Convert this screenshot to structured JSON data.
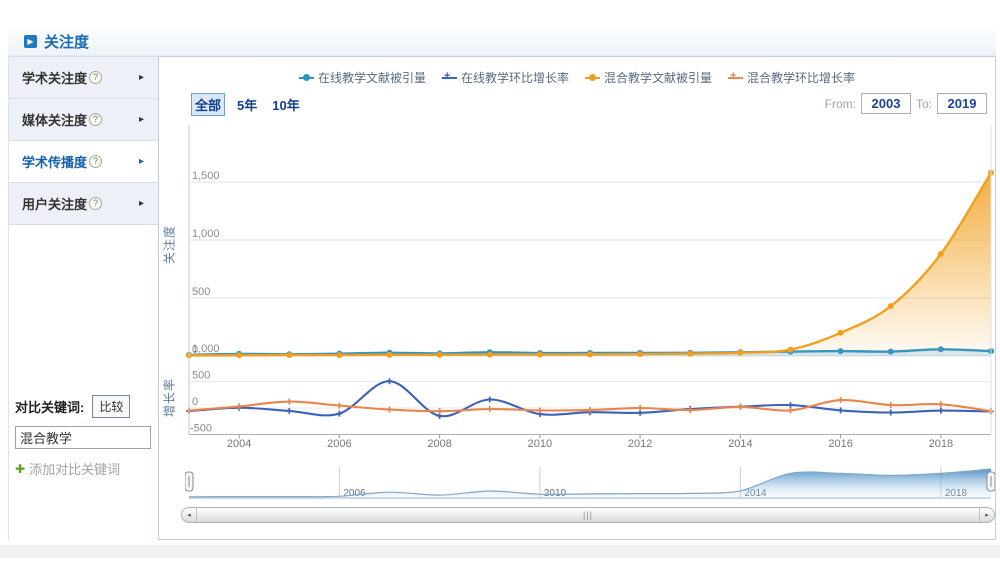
{
  "header": {
    "title": "关注度"
  },
  "icons": {
    "section_arrow": "▶",
    "help": "?",
    "menu_arrow": "▸",
    "plus": "✚",
    "scroll_left": "◂",
    "scroll_right": "▸",
    "grip": "|||"
  },
  "sidebar": {
    "items": [
      {
        "label": "学术关注度",
        "active": false
      },
      {
        "label": "媒体关注度",
        "active": false
      },
      {
        "label": "学术传播度",
        "active": true
      },
      {
        "label": "用户关注度",
        "active": false
      }
    ]
  },
  "compare": {
    "label": "对比关键词:",
    "button": "比较",
    "keyword": "混合教学",
    "add_label": "添加对比关键词"
  },
  "legend": {
    "items": [
      {
        "label": "在线教学文献被引量",
        "color": "#2e94c8",
        "marker": "circle"
      },
      {
        "label": "在线教学环比增长率",
        "color": "#3a62b8",
        "marker": "plus"
      },
      {
        "label": "混合教学文献被引量",
        "color": "#f0a01e",
        "marker": "circle"
      },
      {
        "label": "混合教学环比增长率",
        "color": "#e8854a",
        "marker": "plus"
      }
    ]
  },
  "range": {
    "tabs": [
      {
        "label": "全部",
        "active": true
      },
      {
        "label": "5年",
        "active": false
      },
      {
        "label": "10年",
        "active": false
      }
    ],
    "from_label": "From:",
    "from_value": "2003",
    "to_label": "To:",
    "to_value": "2019"
  },
  "chart_data": [
    {
      "type": "line",
      "name": "attention-index",
      "ylabel": "关注度",
      "x": [
        2003,
        2004,
        2005,
        2006,
        2007,
        2008,
        2009,
        2010,
        2011,
        2012,
        2013,
        2014,
        2015,
        2016,
        2017,
        2018,
        2019
      ],
      "ylim": [
        0,
        1750
      ],
      "yticks": [
        {
          "v": 0,
          "label": "0"
        },
        {
          "v": 500,
          "label": "500"
        },
        {
          "v": 1000,
          "label": "1,000"
        },
        {
          "v": 1500,
          "label": "1,500"
        }
      ],
      "series": [
        {
          "name": "在线教学文献被引量",
          "color": "#2e94c8",
          "marker": "circle",
          "area": true,
          "values": [
            10,
            18,
            15,
            20,
            28,
            22,
            32,
            25,
            26,
            27,
            28,
            32,
            38,
            42,
            38,
            58,
            42
          ]
        },
        {
          "name": "混合教学文献被引量",
          "color": "#f0a01e",
          "marker": "circle",
          "area": true,
          "values": [
            5,
            6,
            8,
            8,
            10,
            10,
            12,
            12,
            14,
            16,
            20,
            28,
            55,
            200,
            430,
            880,
            1580
          ]
        }
      ]
    },
    {
      "type": "line",
      "name": "growth-rate",
      "ylabel": "增长率",
      "x": [
        2003,
        2004,
        2005,
        2006,
        2007,
        2008,
        2009,
        2010,
        2011,
        2012,
        2013,
        2014,
        2015,
        2016,
        2017,
        2018,
        2019
      ],
      "ylim": [
        -500,
        1000
      ],
      "yticks": [
        {
          "v": 1000,
          "label": "1,000"
        },
        {
          "v": 500,
          "label": "500"
        },
        {
          "v": 0,
          "label": "0"
        },
        {
          "v": -500,
          "label": "-500"
        }
      ],
      "xticks": [
        2004,
        2006,
        2008,
        2010,
        2012,
        2014,
        2016,
        2018
      ],
      "series": [
        {
          "name": "在线教学环比增长率",
          "color": "#3a62b8",
          "marker": "plus",
          "values": [
            -60,
            5,
            -55,
            -105,
            505,
            -150,
            160,
            -115,
            -80,
            -90,
            -20,
            25,
            55,
            -45,
            -85,
            -50,
            -65
          ]
        },
        {
          "name": "混合教学环比增长率",
          "color": "#e8854a",
          "marker": "plus",
          "values": [
            -50,
            30,
            120,
            45,
            -30,
            -60,
            -20,
            -45,
            -40,
            0,
            -40,
            20,
            -45,
            150,
            55,
            70,
            -60
          ]
        }
      ]
    },
    {
      "type": "area",
      "name": "navigator",
      "color": "#4a8fc4",
      "x": [
        2003,
        2004,
        2005,
        2006,
        2007,
        2008,
        2009,
        2010,
        2011,
        2012,
        2013,
        2014,
        2015,
        2016,
        2017,
        2018,
        2019
      ],
      "values": [
        0.04,
        0.05,
        0.05,
        0.06,
        0.2,
        0.1,
        0.24,
        0.13,
        0.14,
        0.15,
        0.16,
        0.25,
        0.85,
        0.85,
        0.78,
        0.85,
        1.0
      ],
      "xticks": [
        2006,
        2010,
        2014,
        2018
      ]
    }
  ]
}
